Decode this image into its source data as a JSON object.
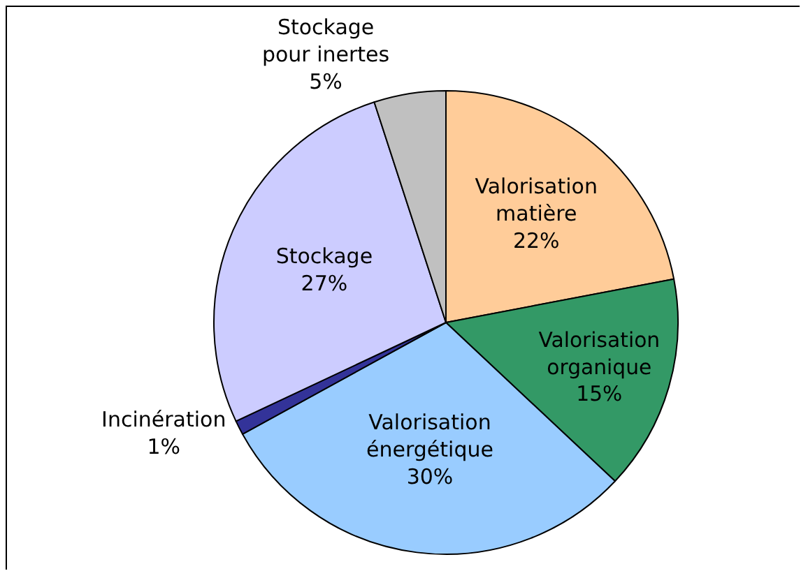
{
  "chart_data": {
    "type": "pie",
    "categories": [
      "Valorisation matière",
      "Valorisation organique",
      "Valorisation énergétique",
      "Incinération",
      "Stockage",
      "Stockage pour inertes"
    ],
    "values": [
      22,
      15,
      30,
      1,
      27,
      5
    ],
    "value_labels": [
      "22%",
      "15%",
      "30%",
      "1%",
      "27%",
      "5%"
    ],
    "colors": [
      "#ffcc99",
      "#339966",
      "#99ccff",
      "#333399",
      "#ccccff",
      "#c0c0c0"
    ]
  }
}
